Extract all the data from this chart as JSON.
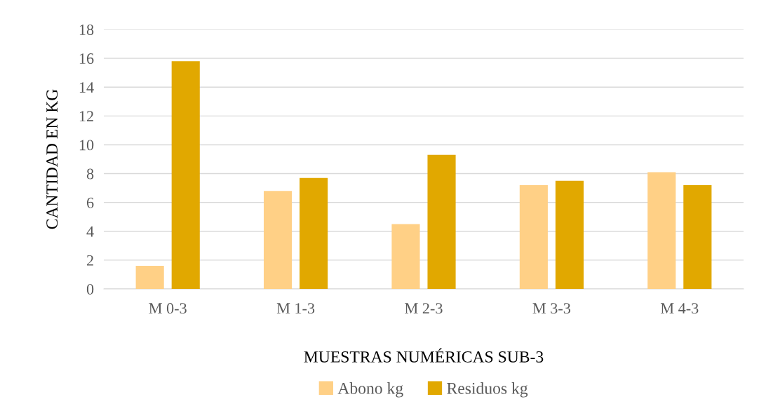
{
  "chart_data": {
    "type": "bar",
    "xlabel": "MUESTRAS NUMÉRICAS SUB-3",
    "ylabel": "CANTIDAD EN KG",
    "categories": [
      "M 0-3",
      "M 1-3",
      "M 2-3",
      "M 3-3",
      "M 4-3"
    ],
    "series": [
      {
        "name": "Abono kg",
        "color": "#ffd086",
        "values": [
          1.6,
          6.8,
          4.5,
          7.2,
          8.1
        ]
      },
      {
        "name": "Residuos kg",
        "color": "#e1a800",
        "values": [
          15.8,
          7.7,
          9.3,
          7.5,
          7.2
        ]
      }
    ],
    "ylim": [
      0,
      18
    ],
    "yticks": [
      0,
      2,
      4,
      6,
      8,
      10,
      12,
      14,
      16,
      18
    ],
    "grid": "y",
    "legend": "bottom"
  }
}
